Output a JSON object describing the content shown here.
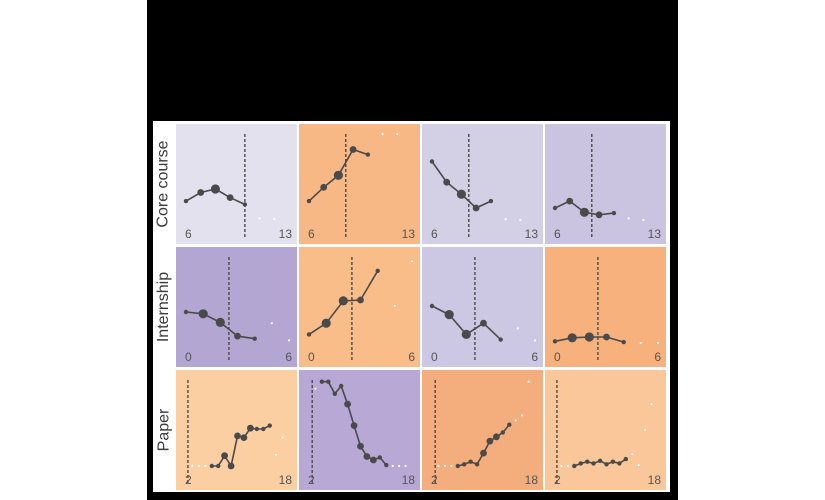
{
  "chart_data": {
    "type": "line",
    "rows": [
      {
        "label": "Core course",
        "x_range": [
          6,
          13
        ],
        "tick_labels": [
          "6",
          "13"
        ],
        "panels": [
          {
            "bg": "#e4e1ee",
            "vline": 10,
            "dot_size": [
              2,
              3,
              4,
              3,
              2,
              1,
              1
            ],
            "x": [
              6,
              7,
              8,
              9,
              10,
              11,
              12
            ],
            "y": [
              0.22,
              0.32,
              0.36,
              0.26,
              0.18,
              0.02,
              0.01
            ]
          },
          {
            "bg": "#f7b886",
            "vline": 8.5,
            "dot_size": [
              2,
              3,
              4,
              3,
              2,
              1,
              1
            ],
            "x": [
              6,
              7,
              8,
              9,
              10,
              11,
              12
            ],
            "y": [
              0.22,
              0.38,
              0.52,
              0.82,
              0.76,
              1.0,
              1.0
            ]
          },
          {
            "bg": "#d3cfe5",
            "vline": 8.5,
            "dot_size": [
              2,
              3,
              4,
              3,
              2,
              1,
              1
            ],
            "x": [
              6,
              7,
              8,
              9,
              10,
              11,
              12
            ],
            "y": [
              0.68,
              0.44,
              0.3,
              0.14,
              0.22,
              0.01,
              0.0
            ]
          },
          {
            "bg": "#cac4e0",
            "vline": 8.5,
            "dot_size": [
              2,
              3,
              4,
              3,
              2,
              1,
              1
            ],
            "x": [
              6,
              7,
              8,
              9,
              10,
              11,
              12
            ],
            "y": [
              0.14,
              0.22,
              0.09,
              0.06,
              0.08,
              0.02,
              0.0
            ]
          }
        ]
      },
      {
        "label": "Internship",
        "x_range": [
          0,
          6
        ],
        "tick_labels": [
          "0",
          "6"
        ],
        "panels": [
          {
            "bg": "#b3a6d3",
            "vline": 2.5,
            "dot_size": [
              2,
              4,
              4,
              3,
              2,
              1,
              1
            ],
            "x": [
              0,
              1,
              2,
              3,
              4,
              5,
              6
            ],
            "y": [
              0.36,
              0.34,
              0.24,
              0.08,
              0.05,
              0.23,
              0.03
            ]
          },
          {
            "bg": "#f9bd8a",
            "vline": 2.5,
            "dot_size": [
              2,
              4,
              4,
              3,
              2,
              1,
              1
            ],
            "x": [
              0,
              1,
              2,
              3,
              4,
              5,
              6
            ],
            "y": [
              0.1,
              0.23,
              0.49,
              0.5,
              0.84,
              0.43,
              0.95
            ]
          },
          {
            "bg": "#ccc7e2",
            "vline": 2.5,
            "dot_size": [
              2,
              4,
              4,
              3,
              2,
              1,
              1
            ],
            "x": [
              0,
              1,
              2,
              3,
              4,
              5,
              6
            ],
            "y": [
              0.43,
              0.33,
              0.1,
              0.23,
              0.04,
              0.17,
              0.03
            ]
          },
          {
            "bg": "#f6b17c",
            "vline": 2.5,
            "dot_size": [
              2,
              4,
              4,
              3,
              2,
              1,
              1
            ],
            "x": [
              0,
              1,
              2,
              3,
              4,
              5,
              6
            ],
            "y": [
              0.02,
              0.06,
              0.07,
              0.07,
              0.01,
              0.0,
              0.0
            ]
          }
        ]
      },
      {
        "label": "Paper",
        "x_range": [
          2,
          18
        ],
        "tick_labels": [
          "2",
          "18"
        ],
        "panels": [
          {
            "bg": "#fbcfa2",
            "vline": 2.3,
            "dot_size": [
              1,
              1,
              1,
              2,
              2,
              3,
              3,
              3,
              3,
              3,
              2,
              2,
              2,
              1,
              1
            ],
            "x": [
              3,
              4,
              5,
              6,
              7,
              8,
              9,
              10,
              11,
              12,
              13,
              14,
              15,
              16,
              17
            ],
            "y": [
              0.0,
              0.0,
              0.0,
              0.0,
              0.0,
              0.12,
              0.0,
              0.35,
              0.33,
              0.44,
              0.43,
              0.43,
              0.47,
              0.13,
              0.33
            ]
          },
          {
            "bg": "#b7a8d6",
            "vline": 2.5,
            "dot_size": [
              1,
              2,
              2,
              2,
              2,
              3,
              3,
              3,
              3,
              3,
              2,
              2,
              1,
              1,
              1
            ],
            "x": [
              3,
              4,
              5,
              6,
              7,
              8,
              9,
              10,
              11,
              12,
              13,
              14,
              15,
              16,
              17
            ],
            "y": [
              0.9,
              0.98,
              0.98,
              0.84,
              0.93,
              0.72,
              0.47,
              0.23,
              0.11,
              0.07,
              0.1,
              0.01,
              0.0,
              0.0,
              0.0
            ]
          },
          {
            "bg": "#f4ad7c",
            "vline": 2.5,
            "dot_size": [
              1,
              1,
              1,
              2,
              2,
              2,
              2,
              3,
              3,
              3,
              2,
              2,
              1,
              1,
              1
            ],
            "x": [
              3,
              4,
              5,
              6,
              7,
              8,
              9,
              10,
              11,
              12,
              13,
              14,
              15,
              16,
              17
            ],
            "y": [
              0.0,
              0.0,
              0.0,
              0.0,
              0.02,
              0.05,
              0.02,
              0.15,
              0.29,
              0.34,
              0.39,
              0.48,
              0.53,
              0.59,
              0.98
            ]
          },
          {
            "bg": "#f9c79a",
            "vline": 2.3,
            "dot_size": [
              1,
              1,
              2,
              2,
              2,
              2,
              2,
              2,
              2,
              2,
              2,
              1,
              1,
              1,
              1
            ],
            "x": [
              3,
              4,
              5,
              6,
              7,
              8,
              9,
              10,
              11,
              12,
              13,
              14,
              15,
              16,
              17
            ],
            "y": [
              0.0,
              0.0,
              0.0,
              0.03,
              0.05,
              0.03,
              0.06,
              0.02,
              0.05,
              0.03,
              0.08,
              0.14,
              0.01,
              0.42,
              0.72
            ]
          }
        ]
      }
    ],
    "title": "",
    "xlabel": "",
    "ylabel": "",
    "grid": false,
    "colors": {
      "line": "#4a4a4a",
      "dot": "#4a4a4a",
      "vline": "#4a4a4a"
    }
  }
}
